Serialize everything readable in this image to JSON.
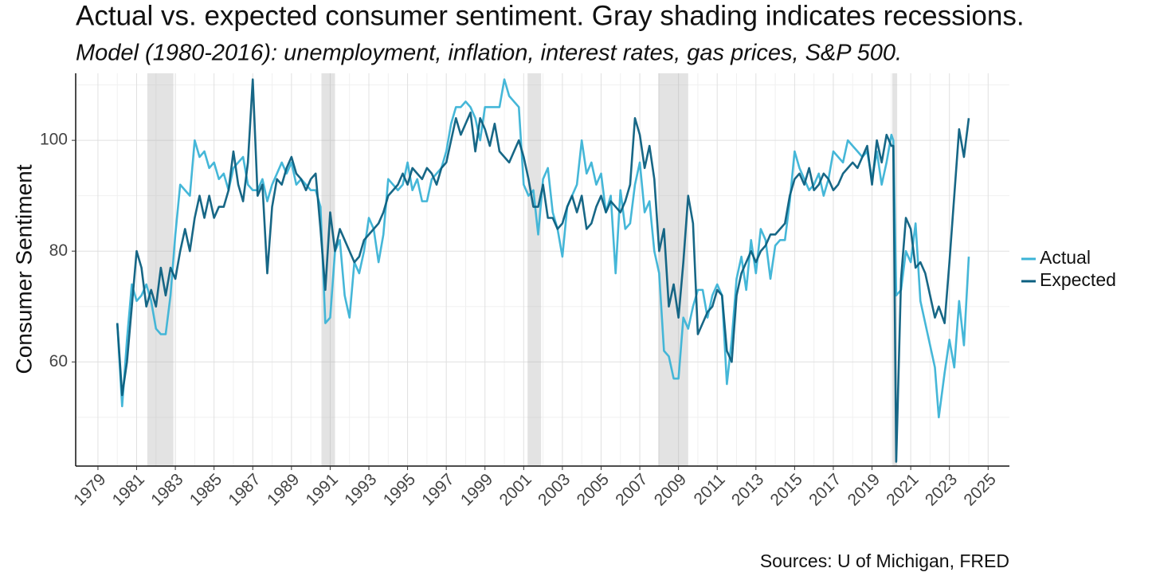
{
  "chart_data": {
    "type": "line",
    "title": "Actual vs. expected consumer sentiment.  Gray shading indicates recessions.",
    "subtitle": "Model (1980-2016): unemployment, inflation, interest rates, gas prices, S&P 500.",
    "ylabel": "Consumer Sentiment",
    "source": "Sources: U of Michigan, FRED",
    "x": [
      1980.0,
      1980.25,
      1980.5,
      1980.75,
      1981.0,
      1981.25,
      1981.5,
      1981.75,
      1982.0,
      1982.25,
      1982.5,
      1982.75,
      1983.0,
      1983.25,
      1983.5,
      1983.75,
      1984.0,
      1984.25,
      1984.5,
      1984.75,
      1985.0,
      1985.25,
      1985.5,
      1985.75,
      1986.0,
      1986.25,
      1986.5,
      1986.75,
      1987.0,
      1987.25,
      1987.5,
      1987.75,
      1988.0,
      1988.25,
      1988.5,
      1988.75,
      1989.0,
      1989.25,
      1989.5,
      1989.75,
      1990.0,
      1990.25,
      1990.5,
      1990.75,
      1991.0,
      1991.25,
      1991.5,
      1991.75,
      1992.0,
      1992.25,
      1992.5,
      1992.75,
      1993.0,
      1993.25,
      1993.5,
      1993.75,
      1994.0,
      1994.25,
      1994.5,
      1994.75,
      1995.0,
      1995.25,
      1995.5,
      1995.75,
      1996.0,
      1996.25,
      1996.5,
      1996.75,
      1997.0,
      1997.25,
      1997.5,
      1997.75,
      1998.0,
      1998.25,
      1998.5,
      1998.75,
      1999.0,
      1999.25,
      1999.5,
      1999.75,
      2000.0,
      2000.25,
      2000.5,
      2000.75,
      2001.0,
      2001.25,
      2001.5,
      2001.75,
      2002.0,
      2002.25,
      2002.5,
      2002.75,
      2003.0,
      2003.25,
      2003.5,
      2003.75,
      2004.0,
      2004.25,
      2004.5,
      2004.75,
      2005.0,
      2005.25,
      2005.5,
      2005.75,
      2006.0,
      2006.25,
      2006.5,
      2006.75,
      2007.0,
      2007.25,
      2007.5,
      2007.75,
      2008.0,
      2008.25,
      2008.5,
      2008.75,
      2009.0,
      2009.25,
      2009.5,
      2009.75,
      2010.0,
      2010.25,
      2010.5,
      2010.75,
      2011.0,
      2011.25,
      2011.5,
      2011.75,
      2012.0,
      2012.25,
      2012.5,
      2012.75,
      2013.0,
      2013.25,
      2013.5,
      2013.75,
      2014.0,
      2014.25,
      2014.5,
      2014.75,
      2015.0,
      2015.25,
      2015.5,
      2015.75,
      2016.0,
      2016.25,
      2016.5,
      2016.75,
      2017.0,
      2017.25,
      2017.5,
      2017.75,
      2018.0,
      2018.25,
      2018.5,
      2018.75,
      2019.0,
      2019.25,
      2019.5,
      2019.75,
      2020.0,
      2020.1,
      2020.25,
      2020.5,
      2020.75,
      2021.0,
      2021.25,
      2021.5,
      2021.75,
      2022.0,
      2022.25,
      2022.45,
      2022.75,
      2023.0,
      2023.25,
      2023.5,
      2023.75,
      2024.0
    ],
    "series": [
      {
        "name": "Actual",
        "color": "#3bb3d6",
        "values": [
          67,
          52,
          64,
          74,
          71,
          72,
          74,
          71,
          66,
          65,
          65,
          72,
          83,
          92,
          91,
          90,
          100,
          97,
          98,
          95,
          96,
          93,
          94,
          91,
          95,
          96,
          97,
          92,
          91,
          91,
          93,
          89,
          92,
          94,
          96,
          94,
          96,
          92,
          93,
          92,
          91,
          91,
          88,
          67,
          68,
          80,
          82,
          72,
          68,
          78,
          76,
          80,
          86,
          84,
          78,
          83,
          93,
          92,
          91,
          92,
          96,
          91,
          93,
          89,
          89,
          93,
          94,
          95,
          98,
          103,
          106,
          106,
          107,
          106,
          104,
          100,
          106,
          106,
          106,
          106,
          111,
          108,
          107,
          106,
          92,
          90,
          91,
          83,
          93,
          95,
          87,
          84,
          79,
          88,
          90,
          92,
          100,
          94,
          96,
          92,
          94,
          87,
          90,
          76,
          91,
          84,
          85,
          92,
          96,
          87,
          89,
          80,
          76,
          62,
          61,
          57,
          57,
          68,
          66,
          70,
          73,
          73,
          68,
          72,
          74,
          72,
          56,
          64,
          75,
          79,
          73,
          82,
          76,
          84,
          82,
          75,
          81,
          82,
          82,
          89,
          98,
          95,
          93,
          91,
          92,
          94,
          90,
          93,
          98,
          97,
          96,
          100,
          99,
          98,
          97,
          98,
          93,
          98,
          92,
          96,
          101,
          100,
          72,
          73,
          80,
          78,
          85,
          71,
          67,
          63,
          59,
          50,
          58,
          64,
          59,
          71,
          63,
          79
        ]
      },
      {
        "name": "Expected",
        "color": "#0b5f80",
        "values": [
          67,
          54,
          60,
          70,
          80,
          77,
          70,
          73,
          70,
          77,
          72,
          77,
          75,
          80,
          84,
          80,
          86,
          90,
          86,
          90,
          86,
          88,
          88,
          91,
          98,
          92,
          89,
          96,
          111,
          90,
          92,
          76,
          88,
          93,
          92,
          95,
          97,
          94,
          93,
          91,
          93,
          94,
          84,
          73,
          87,
          80,
          84,
          82,
          80,
          78,
          79,
          82,
          83,
          84,
          85,
          87,
          90,
          91,
          92,
          94,
          92,
          95,
          94,
          93,
          95,
          94,
          92,
          95,
          96,
          100,
          104,
          101,
          103,
          105,
          98,
          104,
          102,
          99,
          103,
          98,
          97,
          96,
          98,
          100,
          97,
          93,
          88,
          88,
          92,
          86,
          86,
          84,
          85,
          88,
          90,
          87,
          90,
          84,
          85,
          88,
          90,
          87,
          89,
          88,
          87,
          89,
          92,
          104,
          101,
          95,
          99,
          93,
          80,
          84,
          70,
          74,
          68,
          78,
          90,
          85,
          65,
          67,
          69,
          70,
          73,
          72,
          62,
          60,
          72,
          76,
          78,
          80,
          78,
          80,
          81,
          83,
          83,
          84,
          85,
          90,
          93,
          94,
          92,
          95,
          91,
          92,
          94,
          93,
          91,
          92,
          94,
          95,
          96,
          95,
          97,
          99,
          92,
          100,
          96,
          101,
          99,
          99,
          42,
          75,
          86,
          84,
          77,
          78,
          76,
          72,
          68,
          70,
          67,
          78,
          90,
          102,
          97,
          104
        ]
      }
    ],
    "recessions": [
      [
        1981.55,
        1982.9
      ],
      [
        1990.55,
        1991.25
      ],
      [
        2001.2,
        2001.9
      ],
      [
        2007.95,
        2009.5
      ],
      [
        2020.05,
        2020.3
      ]
    ],
    "xlim": [
      1977.85,
      2026.1
    ],
    "ylim": [
      41.2,
      112.1
    ],
    "xticks": [
      1979,
      1981,
      1983,
      1985,
      1987,
      1989,
      1991,
      1993,
      1995,
      1997,
      1999,
      2001,
      2003,
      2005,
      2007,
      2009,
      2011,
      2013,
      2015,
      2017,
      2019,
      2021,
      2023,
      2025
    ],
    "yticks": [
      60,
      80,
      100
    ],
    "x_minor_grid": [
      1980,
      1982,
      1984,
      1986,
      1988,
      1990,
      1992,
      1994,
      1996,
      1998,
      2000,
      2002,
      2004,
      2006,
      2008,
      2010,
      2012,
      2014,
      2016,
      2018,
      2020,
      2022,
      2024
    ],
    "y_minor_grid": [
      50,
      70,
      90,
      110
    ],
    "grid": true,
    "legend": "right"
  }
}
